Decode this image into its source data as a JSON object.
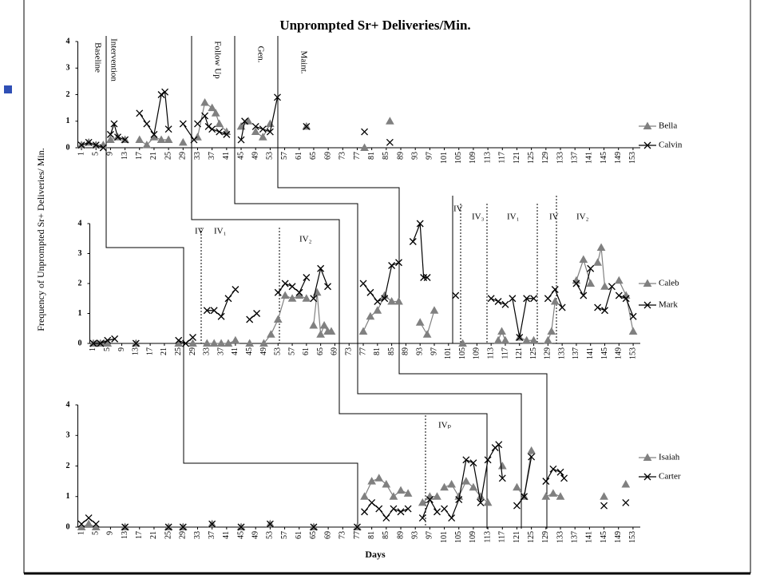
{
  "chart_data": [
    {
      "type": "line",
      "title": "Unprompted Sr+ Deliveries/Min.",
      "annotations": [
        "Baseline",
        "Intervention",
        "Follow Up",
        "Gen.",
        "Maint."
      ],
      "xlim": [
        0,
        155
      ],
      "ylim": [
        0,
        4
      ],
      "yticks": [
        0,
        1,
        2,
        3,
        4
      ],
      "xticks": [
        1,
        5,
        9,
        13,
        17,
        21,
        25,
        29,
        33,
        37,
        41,
        45,
        49,
        53,
        57,
        61,
        65,
        69,
        73,
        77,
        81,
        85,
        89,
        93,
        97,
        101,
        105,
        109,
        113,
        117,
        121,
        125,
        129,
        133,
        137,
        141,
        145,
        149,
        153
      ],
      "series": [
        {
          "name": "Bella",
          "color": "#808080",
          "marker": "triangle",
          "x": [
            1,
            3,
            5,
            7,
            null,
            9,
            11,
            13,
            null,
            17,
            19,
            21,
            23,
            25,
            null,
            29,
            null,
            33,
            35,
            37,
            38,
            39,
            41,
            null,
            45,
            47,
            null,
            49,
            51,
            53,
            null,
            63,
            null,
            79,
            null,
            86
          ],
          "values": [
            0.1,
            0.2,
            0.1,
            0.1,
            null,
            0.3,
            0.4,
            0.3,
            null,
            0.3,
            0.1,
            0.4,
            0.3,
            0.3,
            null,
            0.2,
            null,
            0.4,
            1.7,
            1.5,
            1.3,
            0.9,
            0.6,
            null,
            0.8,
            1.0,
            null,
            0.6,
            0.4,
            0.9,
            null,
            0.8,
            null,
            0,
            null,
            1.0
          ]
        },
        {
          "name": "Calvin",
          "color": "#000000",
          "marker": "x",
          "x": [
            1,
            3,
            5,
            7,
            null,
            9,
            10,
            11,
            13,
            null,
            17,
            19,
            21,
            23,
            24,
            25,
            null,
            29,
            32,
            null,
            33,
            35,
            36,
            37,
            39,
            41,
            null,
            45,
            46,
            null,
            49,
            51,
            53,
            55,
            null,
            63,
            null,
            79,
            null,
            86
          ],
          "values": [
            0.1,
            0.2,
            0.1,
            0.0,
            null,
            0.5,
            0.9,
            0.4,
            0.3,
            null,
            1.3,
            0.9,
            0.5,
            2.0,
            2.1,
            0.7,
            null,
            0.9,
            0.3,
            null,
            0.9,
            1.2,
            0.8,
            0.7,
            0.6,
            0.5,
            null,
            0.3,
            1.0,
            null,
            0.8,
            0.7,
            0.6,
            1.9,
            null,
            0.8,
            null,
            0.6,
            null,
            0.2
          ]
        }
      ]
    },
    {
      "type": "line",
      "y_label": "Frequency of Unprompted Sr+ Deliveries/ Min.",
      "annotations": [
        "IV",
        "IV₁",
        "IV₂",
        "IV",
        "IV₃",
        "IV₁",
        "IV",
        "IV₂"
      ],
      "xlim": [
        0,
        155
      ],
      "ylim": [
        0,
        4
      ],
      "yticks": [
        0,
        1,
        2,
        3,
        4
      ],
      "xticks": [
        1,
        5,
        9,
        13,
        17,
        21,
        25,
        29,
        33,
        37,
        41,
        45,
        49,
        53,
        57,
        61,
        65,
        69,
        73,
        77,
        81,
        85,
        89,
        93,
        97,
        101,
        105,
        109,
        113,
        117,
        121,
        125,
        129,
        133,
        137,
        141,
        145,
        149,
        153
      ],
      "series": [
        {
          "name": "Caleb",
          "color": "#808080",
          "marker": "triangle",
          "x": [
            1,
            2,
            3,
            4,
            5,
            null,
            13,
            null,
            25,
            null,
            29,
            null,
            33,
            35,
            37,
            39,
            41,
            null,
            45,
            null,
            49,
            51,
            53,
            55,
            57,
            59,
            61,
            null,
            63,
            64,
            65,
            66,
            67,
            68,
            null,
            77,
            79,
            81,
            83,
            85,
            87,
            null,
            93,
            95,
            97,
            null,
            105,
            null,
            115,
            116,
            117,
            null,
            121,
            123,
            125,
            null,
            129,
            130,
            131,
            null,
            137,
            139,
            141,
            null,
            143,
            144,
            145,
            null,
            149,
            151,
            153
          ],
          "values": [
            0,
            0,
            0,
            0,
            0,
            null,
            0,
            null,
            0,
            null,
            0,
            null,
            0,
            0,
            0,
            0,
            0.1,
            null,
            0,
            null,
            0,
            0.3,
            0.8,
            1.6,
            1.5,
            1.6,
            1.5,
            null,
            0.6,
            1.7,
            0.3,
            0.6,
            0.4,
            0.4,
            null,
            0.4,
            0.9,
            1.1,
            1.6,
            1.4,
            1.4,
            null,
            0.7,
            0.3,
            1.1,
            null,
            0,
            null,
            0.1,
            0.4,
            0.1,
            null,
            0.2,
            0.1,
            0.1,
            null,
            0.1,
            0.4,
            1.4,
            null,
            2.1,
            2.8,
            2.0,
            null,
            2.7,
            3.2,
            1.9,
            null,
            2.1,
            1.6,
            0.4
          ]
        },
        {
          "name": "Mark",
          "color": "#000000",
          "marker": "x",
          "x": [
            1,
            3,
            5,
            7,
            null,
            13,
            null,
            25,
            27,
            29,
            null,
            33,
            35,
            37,
            39,
            41,
            null,
            45,
            47,
            null,
            53,
            55,
            57,
            59,
            61,
            null,
            63,
            65,
            67,
            null,
            77,
            79,
            81,
            83,
            85,
            87,
            null,
            91,
            93,
            94,
            95,
            null,
            103,
            null,
            113,
            115,
            117,
            null,
            119,
            121,
            123,
            125,
            null,
            129,
            131,
            133,
            null,
            137,
            139,
            141,
            null,
            143,
            145,
            147,
            null,
            149,
            151,
            153
          ],
          "values": [
            0,
            0,
            0.1,
            0.15,
            null,
            0,
            null,
            0.1,
            0,
            0.2,
            null,
            1.1,
            1.1,
            0.9,
            1.5,
            1.8,
            null,
            0.8,
            1.0,
            null,
            1.7,
            2.0,
            1.9,
            1.7,
            2.2,
            null,
            1.5,
            2.5,
            1.9,
            null,
            2.0,
            1.7,
            1.4,
            1.5,
            2.6,
            2.7,
            null,
            3.4,
            4.0,
            2.2,
            2.2,
            null,
            1.6,
            null,
            1.5,
            1.4,
            1.3,
            null,
            1.5,
            0.2,
            1.5,
            1.5,
            null,
            1.5,
            1.8,
            1.2,
            null,
            2.0,
            1.6,
            2.5,
            null,
            1.2,
            1.1,
            1.9,
            null,
            1.6,
            1.5,
            0.9
          ]
        }
      ]
    },
    {
      "type": "line",
      "x_label": "Days",
      "annotations": [
        "IVₚ"
      ],
      "xlim": [
        0,
        155
      ],
      "ylim": [
        0,
        4
      ],
      "yticks": [
        0,
        1,
        2,
        3,
        4
      ],
      "xticks": [
        1,
        5,
        9,
        13,
        17,
        21,
        25,
        29,
        33,
        37,
        41,
        45,
        49,
        53,
        57,
        61,
        65,
        69,
        73,
        77,
        81,
        85,
        89,
        93,
        97,
        101,
        105,
        109,
        113,
        117,
        121,
        125,
        129,
        133,
        137,
        141,
        145,
        149,
        153
      ],
      "series": [
        {
          "name": "Isaiah",
          "color": "#808080",
          "marker": "triangle",
          "x": [
            1,
            3,
            5,
            null,
            13,
            null,
            25,
            null,
            29,
            null,
            37,
            null,
            45,
            null,
            53,
            null,
            65,
            null,
            77,
            null,
            79,
            81,
            83,
            85,
            87,
            89,
            91,
            null,
            95,
            97,
            99,
            null,
            101,
            103,
            105,
            107,
            109,
            111,
            113,
            null,
            117,
            null,
            121,
            123,
            125,
            null,
            129,
            131,
            133,
            null,
            145,
            null,
            151
          ],
          "values": [
            0,
            0.1,
            0,
            null,
            0,
            null,
            0,
            null,
            0,
            null,
            0.1,
            null,
            0,
            null,
            0.1,
            null,
            0,
            null,
            0,
            null,
            1.0,
            1.5,
            1.6,
            1.4,
            1.0,
            1.2,
            1.1,
            null,
            0.8,
            1.0,
            1.0,
            null,
            1.3,
            1.4,
            1.0,
            1.5,
            1.3,
            1.0,
            0.8,
            null,
            2.0,
            null,
            1.3,
            1.0,
            2.5,
            null,
            1.0,
            1.1,
            1.0,
            null,
            1.0,
            null,
            1.4
          ]
        },
        {
          "name": "Carter",
          "color": "#000000",
          "marker": "x",
          "x": [
            1,
            3,
            5,
            null,
            13,
            null,
            25,
            null,
            29,
            null,
            37,
            null,
            45,
            null,
            53,
            null,
            65,
            null,
            77,
            null,
            79,
            81,
            83,
            85,
            87,
            89,
            91,
            null,
            95,
            97,
            99,
            null,
            101,
            103,
            105,
            107,
            109,
            111,
            113,
            115,
            116,
            117,
            null,
            121,
            123,
            125,
            null,
            129,
            131,
            133,
            134,
            null,
            145,
            null,
            151
          ],
          "values": [
            0.1,
            0.3,
            0.1,
            null,
            0,
            null,
            0,
            null,
            0,
            null,
            0.1,
            null,
            0,
            null,
            0.1,
            null,
            0,
            null,
            0,
            null,
            0.5,
            0.8,
            0.6,
            0.3,
            0.6,
            0.5,
            0.6,
            null,
            0.3,
            0.9,
            0.5,
            null,
            0.6,
            0.3,
            0.9,
            2.2,
            2.1,
            0.8,
            2.2,
            2.6,
            2.7,
            1.6,
            null,
            0.7,
            1.0,
            2.3,
            null,
            1.5,
            1.9,
            1.8,
            1.6,
            null,
            0.7,
            null,
            0.8
          ]
        }
      ]
    }
  ]
}
